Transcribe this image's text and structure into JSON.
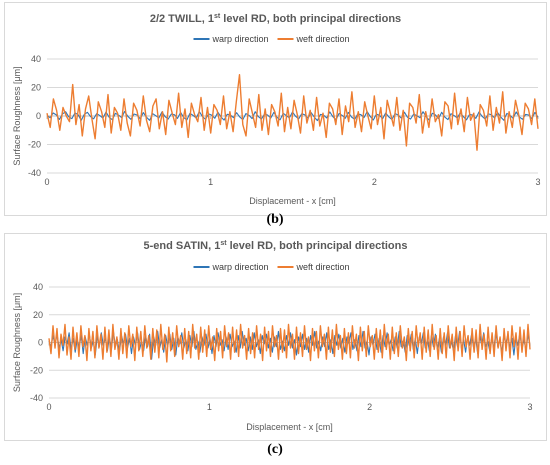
{
  "panels": [
    {
      "caption": "(b)",
      "title_parts": [
        "2/2 TWILL, 1",
        "st",
        " level RD, both principal directions"
      ]
    },
    {
      "caption": "(c)",
      "title_parts": [
        "5-end SATIN, 1",
        "st",
        " level RD, both principal directions"
      ]
    }
  ],
  "colors": {
    "warp": "#2E75B6",
    "weft": "#ED7D31",
    "grid": "#D9D9D9",
    "zero": "#BFBFBF"
  },
  "chart_data": [
    {
      "type": "line",
      "title": "2/2 TWILL, 1st level RD, both principal directions",
      "xlabel": "Displacement - x [cm]",
      "ylabel": "Surface Roughness [μm]",
      "xlim": [
        0,
        3
      ],
      "ylim": [
        -40,
        40
      ],
      "x_ticks": [
        0,
        1,
        2,
        3
      ],
      "y_ticks": [
        40,
        20,
        0,
        -20,
        -40
      ],
      "grid": true,
      "legend": "top-center",
      "x_step": 0.02,
      "series": [
        {
          "name": "warp direction",
          "color": "#2E75B6",
          "values": [
            0.5,
            -1.2,
            2.1,
            0.8,
            -2.4,
            1.5,
            3.0,
            -0.6,
            -1.8,
            2.2,
            0.9,
            -3.1,
            1.1,
            2.6,
            -0.4,
            -2.0,
            1.7,
            0.3,
            -1.5,
            2.8,
            -0.9,
            -2.6,
            1.9,
            0.6,
            -1.1,
            3.2,
            -0.2,
            -2.3,
            1.4,
            0.7,
            -1.9,
            2.4,
            -0.8,
            -3.0,
            1.6,
            0.2,
            -1.3,
            2.9,
            -0.5,
            -2.1,
            1.3,
            0.9,
            -1.7,
            2.5,
            -1.0,
            -2.8,
            1.8,
            0.4,
            -1.4,
            3.1,
            -0.3,
            -2.4,
            1.5,
            0.6,
            -1.6,
            2.7,
            -0.7,
            -2.9,
            1.2,
            0.8,
            -1.2,
            2.3,
            -0.6,
            -2.5,
            1.7,
            0.5,
            -1.8,
            3.0,
            -0.4,
            -2.2,
            1.4,
            0.7,
            -1.5,
            2.6,
            -0.9,
            -2.7,
            1.9,
            0.3,
            -1.3,
            2.8,
            -0.2,
            -2.0,
            1.6,
            0.8,
            -1.7,
            2.4,
            -0.8,
            -3.2,
            1.1,
            0.6,
            -1.4,
            2.9,
            -0.5,
            -2.6,
            1.8,
            0.4,
            -1.6,
            2.5,
            -0.7,
            -2.3,
            1.5,
            0.9,
            -1.1,
            3.1,
            -0.3,
            -2.8,
            1.3,
            0.5,
            -1.9,
            2.2,
            -0.6,
            -2.4,
            1.7,
            0.7,
            -1.5,
            2.7,
            -0.9,
            -2.1,
            1.4,
            0.2,
            -1.2,
            3.0,
            -0.4,
            -2.9,
            1.9,
            0.8,
            -1.8,
            2.6,
            -0.8,
            -2.5,
            1.6,
            0.3,
            -1.4,
            2.3,
            -0.5,
            -2.7,
            1.2,
            0.6,
            -1.7,
            2.8,
            -0.2,
            -2.2,
            1.5,
            0.9,
            -1.3,
            2.4,
            -0.7,
            -3.0,
            1.8,
            0.4,
            -1.6,
            2.9,
            -0.6,
            -2.3,
            1.1,
            0.7,
            -1.9,
            2.5,
            -0.9
          ],
          "note": "warp series values reconstructed"
        },
        {
          "name": "weft direction",
          "color": "#ED7D31",
          "values": [
            2,
            -8,
            12,
            4,
            -10,
            6,
            0,
            -4,
            22,
            -6,
            8,
            -14,
            5,
            14,
            -2,
            -16,
            10,
            3,
            -8,
            15,
            -12,
            6,
            2,
            -10,
            12,
            -5,
            -14,
            9,
            4,
            -7,
            14,
            -3,
            -11,
            7,
            12,
            -9,
            3,
            -13,
            11,
            2,
            -6,
            16,
            -8,
            5,
            -15,
            9,
            1,
            -4,
            13,
            -10,
            6,
            -12,
            8,
            4,
            -6,
            14,
            -9,
            3,
            -11,
            10,
            29,
            -6,
            -14,
            12,
            2,
            -8,
            15,
            -10,
            5,
            -13,
            8,
            3,
            -7,
            16,
            -11,
            6,
            -9,
            11,
            1,
            -12,
            14,
            -5,
            4,
            -10,
            13,
            -7,
            2,
            -15,
            9,
            5,
            -6,
            12,
            -13,
            7,
            -4,
            17,
            -8,
            3,
            -11,
            10,
            0,
            -9,
            14,
            -6,
            6,
            -16,
            11,
            2,
            -7,
            13,
            -10,
            4,
            -21,
            9,
            6,
            -5,
            15,
            -12,
            3,
            -8,
            12,
            -4,
            1,
            -14,
            10,
            7,
            -9,
            16,
            -6,
            5,
            -11,
            13,
            -3,
            2,
            -24,
            8,
            4,
            -7,
            14,
            -10,
            6,
            -5,
            17,
            -12,
            3,
            -8,
            11,
            1,
            -13,
            9,
            5,
            -6,
            12,
            -9
          ]
        }
      ]
    },
    {
      "type": "line",
      "title": "5-end SATIN, 1st level RD, both principal directions",
      "xlabel": "Displacement - x [cm]",
      "ylabel": "Surface Roughness [μm]",
      "xlim": [
        0,
        3
      ],
      "ylim": [
        -40,
        40
      ],
      "x_ticks": [
        0,
        1,
        2,
        3
      ],
      "y_ticks": [
        40,
        20,
        0,
        -20,
        -40
      ],
      "grid": true,
      "legend": "top-center",
      "x_step": 0.0125,
      "series": [
        {
          "name": "warp direction",
          "color": "#2E75B6",
          "values": [
            1,
            -3,
            5,
            -2,
            6,
            -4,
            2,
            -6,
            4,
            -1,
            7,
            -5,
            3,
            -7,
            2,
            -3,
            5,
            -8,
            4,
            -2,
            6,
            -4,
            1,
            -9,
            5,
            -3,
            7,
            -2,
            3,
            -6,
            4,
            -5,
            8,
            -3,
            2,
            -7,
            5,
            -1,
            6,
            -4,
            3,
            -8,
            4,
            -2,
            7,
            -5,
            1,
            -6,
            5,
            -3,
            6,
            -12,
            4,
            -2,
            8,
            -4,
            2,
            -7,
            5,
            -3,
            6,
            -5,
            3,
            -9,
            4,
            -1,
            7,
            -4,
            2,
            -6,
            5,
            -3,
            8,
            -5,
            1,
            -7,
            4,
            -2,
            6,
            -4,
            3,
            -8,
            5,
            -3,
            7,
            -2,
            2,
            -6,
            4,
            -5,
            6,
            -3,
            1,
            -7,
            5,
            -4,
            8,
            -2,
            3,
            -6,
            4,
            -5,
            7,
            -3,
            2,
            -8,
            5,
            -1,
            6,
            -4,
            3,
            -7,
            4,
            -3,
            8,
            -5,
            1,
            -6,
            5,
            -2,
            7,
            -4,
            2,
            -9,
            4,
            -3,
            6,
            -5,
            3,
            -7,
            5,
            -2,
            8,
            -4,
            1,
            -6,
            4,
            -3,
            7,
            -5,
            2,
            -8,
            5,
            -2,
            6,
            -4,
            3,
            -7,
            4,
            -1,
            7,
            -5,
            2,
            -6,
            5,
            -3,
            8,
            -4,
            1,
            -9,
            4,
            -2,
            6,
            -5,
            3,
            -7,
            5,
            -3,
            7,
            -2,
            2,
            -6,
            4,
            -4,
            8,
            -3,
            1,
            -7,
            5,
            -2,
            6,
            -5,
            3,
            -8,
            4,
            -1,
            7,
            -4,
            2,
            -6,
            5,
            -3,
            6,
            -5,
            3,
            -7,
            4,
            -2,
            7,
            -4,
            1,
            -6,
            5,
            -3,
            8,
            -5,
            2,
            -7,
            4,
            -2,
            6,
            -4,
            3,
            -8,
            5,
            -2,
            7,
            -3,
            1,
            -6,
            4,
            -5,
            8,
            -3,
            2,
            -7,
            5,
            -1,
            6,
            -4,
            3,
            -9,
            4,
            -2,
            7,
            -5,
            2,
            -6,
            6,
            -3
          ],
          "note": "warp series values reconstructed"
        },
        {
          "name": "weft direction",
          "color": "#ED7D31",
          "values": [
            3,
            -8,
            12,
            -4,
            10,
            -11,
            6,
            -2,
            13,
            -9,
            4,
            -12,
            11,
            -5,
            7,
            -10,
            12,
            -3,
            5,
            -13,
            10,
            -6,
            8,
            -11,
            12,
            -4,
            6,
            -12,
            11,
            -7,
            9,
            -10,
            13,
            -5,
            4,
            -12,
            10,
            -8,
            7,
            -11,
            12,
            -3,
            6,
            -13,
            11,
            -6,
            8,
            -10,
            12,
            -4,
            5,
            -12,
            10,
            -7,
            9,
            -11,
            13,
            -5,
            6,
            -14,
            11,
            -6,
            7,
            -10,
            12,
            -3,
            5,
            -12,
            10,
            -8,
            8,
            -11,
            13,
            -4,
            6,
            -12,
            11,
            -7,
            9,
            -10,
            12,
            -5,
            4,
            -13,
            10,
            -6,
            8,
            -11,
            12,
            -3,
            7,
            -12,
            11,
            -7,
            9,
            -10,
            13,
            -4,
            5,
            -12,
            10,
            -8,
            7,
            -11,
            12,
            -5,
            6,
            -13,
            11,
            -6,
            8,
            -10,
            12,
            -3,
            5,
            -12,
            10,
            -7,
            9,
            -11,
            13,
            -4,
            6,
            -12,
            11,
            -8,
            7,
            -10,
            12,
            -5,
            4,
            -13,
            10,
            -6,
            8,
            -11,
            12,
            -3,
            6,
            -12,
            11,
            -7,
            9,
            -10,
            13,
            -5,
            5,
            -12,
            10,
            -8,
            7,
            -11,
            12,
            -4,
            6,
            -13,
            11,
            -6,
            8,
            -10,
            12,
            -3,
            5,
            -12,
            10,
            -7,
            9,
            -11,
            13,
            -5,
            6,
            -12,
            11,
            -8,
            7,
            -10,
            12,
            -4,
            4,
            -13,
            10,
            -6,
            8,
            -11,
            12,
            -3,
            7,
            -12,
            11,
            -7,
            9,
            -10,
            13,
            -5,
            5,
            -12,
            10,
            -8,
            7,
            -11,
            12,
            -4,
            6,
            -13,
            11,
            -6,
            8,
            -10,
            12,
            -3,
            5,
            -12,
            10,
            -7,
            9,
            -11,
            13,
            -5,
            6,
            -12,
            11,
            -8,
            7,
            -10,
            12,
            -4,
            4,
            -13,
            10,
            -6,
            8,
            -11,
            12,
            -3,
            7,
            -12,
            11,
            -7,
            9,
            -10,
            13,
            -5
          ]
        }
      ]
    }
  ]
}
